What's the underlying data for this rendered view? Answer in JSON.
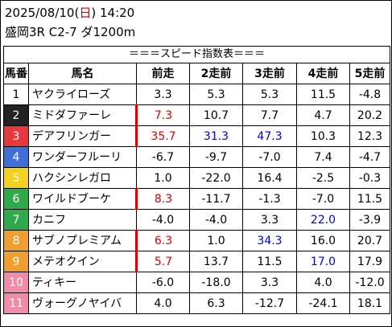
{
  "header": {
    "date": "2025/08/10",
    "weekday_open": "(",
    "weekday": "日",
    "weekday_close": ")",
    "time": "14:20",
    "race": "盛岡3R C2-7 ダ1200m"
  },
  "table": {
    "title": "＝＝＝スピード指数表＝＝＝",
    "columns": [
      "馬番",
      "馬名",
      "前走",
      "2走前",
      "3走前",
      "4走前",
      "5走前"
    ],
    "rows": [
      {
        "no": "1",
        "name": "ヤクライローズ",
        "bg": "#ffffff",
        "fg": "#000000",
        "vals": [
          "3.3",
          "5.3",
          "5.3",
          "11.5",
          "-4.8"
        ]
      },
      {
        "no": "2",
        "name": "ミドダファーレ",
        "bg": "#222222",
        "fg": "#ffffff",
        "vals": [
          "7.3",
          "10.7",
          "7.7",
          "4.7",
          "20.2"
        ]
      },
      {
        "no": "3",
        "name": "デアフリンガー",
        "bg": "#e8383d",
        "fg": "#ffffff",
        "vals": [
          "35.7",
          "31.3",
          "47.3",
          "10.3",
          "12.3"
        ]
      },
      {
        "no": "4",
        "name": "ワンダーフルーリ",
        "bg": "#3f6fd6",
        "fg": "#ffffff",
        "vals": [
          "-6.7",
          "-9.7",
          "-7.0",
          "7.4",
          "-4.7"
        ]
      },
      {
        "no": "5",
        "name": "ハクシンレガロ",
        "bg": "#f2d11f",
        "fg": "#ffffff",
        "vals": [
          "1.0",
          "-22.0",
          "16.4",
          "-2.5",
          "-0.3"
        ]
      },
      {
        "no": "6",
        "name": "ワイルドブーケ",
        "bg": "#2eaa4a",
        "fg": "#ffffff",
        "vals": [
          "8.3",
          "-11.7",
          "-1.3",
          "-7.0",
          "11.5"
        ]
      },
      {
        "no": "7",
        "name": "カニフ",
        "bg": "#2eaa4a",
        "fg": "#ffffff",
        "vals": [
          "-4.0",
          "-4.0",
          "3.3",
          "22.0",
          "-3.9"
        ]
      },
      {
        "no": "8",
        "name": "サブノプレミアム",
        "bg": "#f0a030",
        "fg": "#ffffff",
        "vals": [
          "6.3",
          "1.0",
          "34.3",
          "16.0",
          "20.7"
        ]
      },
      {
        "no": "9",
        "name": "メテオクイン",
        "bg": "#f0a030",
        "fg": "#ffffff",
        "vals": [
          "5.7",
          "13.7",
          "11.5",
          "17.0",
          "17.9"
        ]
      },
      {
        "no": "10",
        "name": "ティキー",
        "bg": "#f08ca8",
        "fg": "#ffffff",
        "vals": [
          "-6.0",
          "-18.0",
          "3.3",
          "4.0",
          "-12.0"
        ]
      },
      {
        "no": "11",
        "name": "ヴォーグノヤイバ",
        "bg": "#f08ca8",
        "fg": "#ffffff",
        "vals": [
          "4.0",
          "6.3",
          "-12.7",
          "-24.1",
          "18.1"
        ]
      }
    ]
  }
}
